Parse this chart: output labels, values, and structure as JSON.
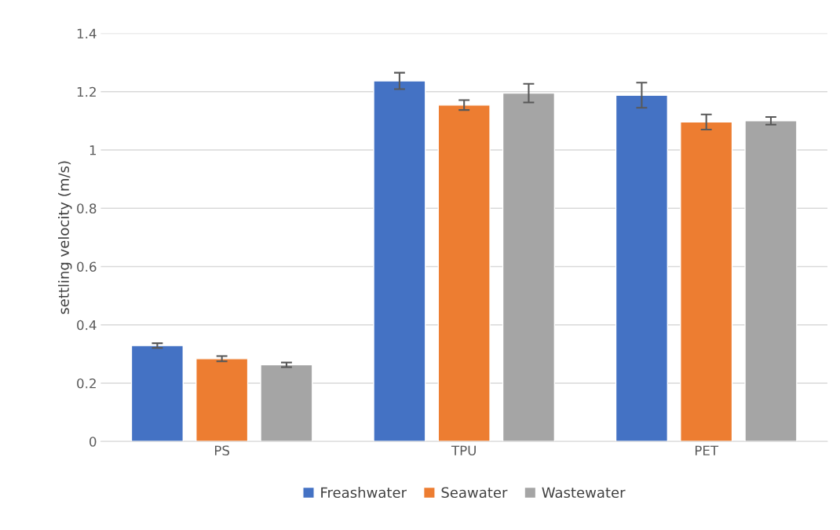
{
  "chart_data": {
    "type": "bar",
    "ylabel": "settling velocity (m/s)",
    "categories": [
      "PS",
      "TPU",
      "PET"
    ],
    "series": [
      {
        "name": "Freashwater",
        "color": "#4472c4",
        "values": [
          0.329,
          1.237,
          1.188
        ],
        "errors": [
          0.008,
          0.028,
          0.043
        ]
      },
      {
        "name": "Seawater",
        "color": "#ed7d31",
        "values": [
          0.284,
          1.154,
          1.096
        ],
        "errors": [
          0.009,
          0.017,
          0.026
        ]
      },
      {
        "name": "Wastewater",
        "color": "#a5a5a5",
        "values": [
          0.263,
          1.195,
          1.1
        ],
        "errors": [
          0.008,
          0.032,
          0.013
        ]
      }
    ],
    "ylim": [
      0,
      1.4
    ],
    "yticks": [
      0,
      0.2,
      0.4,
      0.6,
      0.8,
      1,
      1.2,
      1.4
    ],
    "grid": "y",
    "legend": "bottom"
  }
}
